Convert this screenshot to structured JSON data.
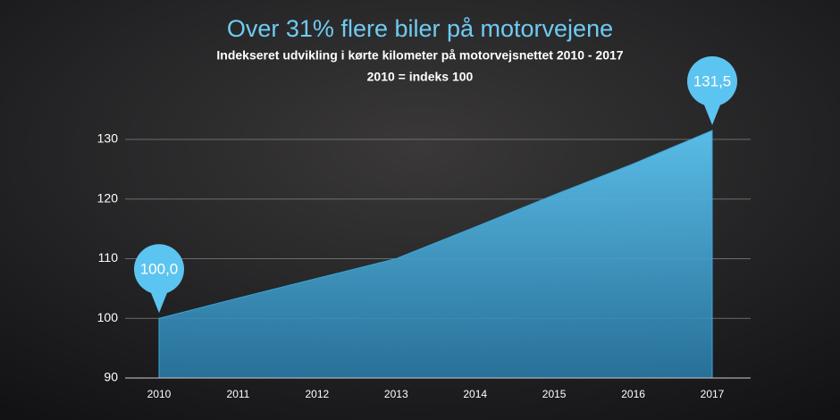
{
  "chart_data": {
    "type": "area",
    "title": "Over 31% flere biler på motorvejene",
    "subtitle": "Indekseret udvikling i kørte kilometer på motorvejsnettet 2010 - 2017",
    "note": "2010 = indeks 100",
    "categories": [
      "2010",
      "2011",
      "2012",
      "2013",
      "2014",
      "2015",
      "2016",
      "2017"
    ],
    "values": [
      100.0,
      103.4,
      106.7,
      110.0,
      115.3,
      120.7,
      125.9,
      131.5
    ],
    "value_labels": [
      "100,0",
      null,
      null,
      null,
      null,
      null,
      null,
      "131,5"
    ],
    "color": "#3aa6d9",
    "ylim": [
      90,
      135
    ],
    "yticks": [
      90,
      100,
      110,
      120,
      130
    ],
    "grid": true
  }
}
